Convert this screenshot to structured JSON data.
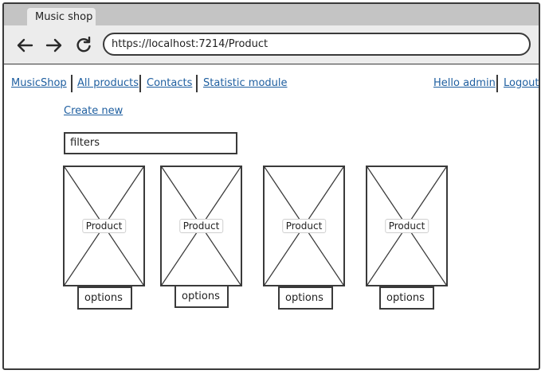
{
  "browser": {
    "tab_title": "Music shop",
    "url": "https://localhost:7214/Product",
    "back_icon": "arrow-left-icon",
    "forward_icon": "arrow-right-icon",
    "reload_icon": "reload-icon"
  },
  "nav": {
    "brand": "MusicShop",
    "links": [
      "All products",
      "Contacts",
      "Statistic module"
    ],
    "greeting": "Hello admin",
    "logout": "Logout"
  },
  "main": {
    "create_new": "Create new",
    "filters": "filters",
    "products": [
      {
        "label": "Product",
        "options": "options"
      },
      {
        "label": "Product",
        "options": "options"
      },
      {
        "label": "Product",
        "options": "options"
      },
      {
        "label": "Product",
        "options": "options"
      }
    ]
  }
}
